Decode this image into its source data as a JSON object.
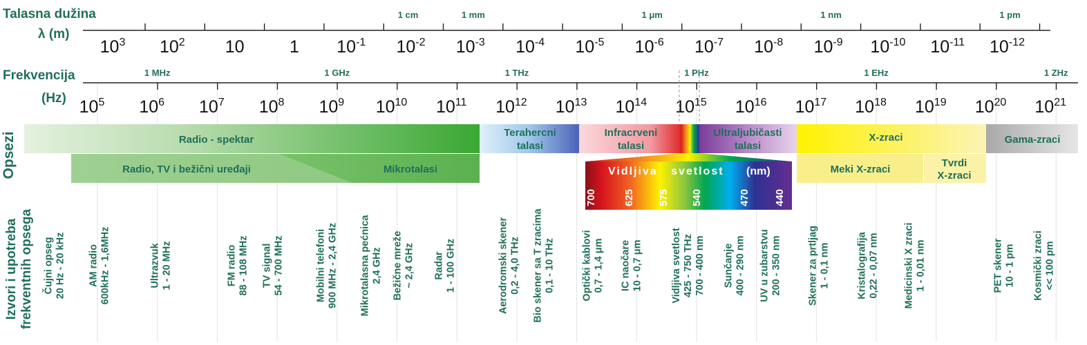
{
  "wavelength_title": "Talasna dužina",
  "wavelength_unit": "λ (m)",
  "frequency_title": "Frekvencija",
  "frequency_unit": "(Hz)",
  "wavelength_ticks": [
    {
      "base": "10",
      "exp": "3"
    },
    {
      "base": "10",
      "exp": "2"
    },
    {
      "base": "10",
      "exp": ""
    },
    {
      "base": "1",
      "exp": ""
    },
    {
      "base": "10",
      "exp": "-1"
    },
    {
      "base": "10",
      "exp": "-2"
    },
    {
      "base": "10",
      "exp": "-3"
    },
    {
      "base": "10",
      "exp": "-4"
    },
    {
      "base": "10",
      "exp": "-5"
    },
    {
      "base": "10",
      "exp": "-6"
    },
    {
      "base": "10",
      "exp": "-7"
    },
    {
      "base": "10",
      "exp": "-8"
    },
    {
      "base": "10",
      "exp": "-9"
    },
    {
      "base": "10",
      "exp": "-10"
    },
    {
      "base": "10",
      "exp": "-11"
    },
    {
      "base": "10",
      "exp": "-12"
    }
  ],
  "wavelength_markers": [
    {
      "label": "1 cm",
      "at": -2
    },
    {
      "label": "1 mm",
      "at": -3
    },
    {
      "label": "1 μm",
      "at": -6
    },
    {
      "label": "1 nm",
      "at": -9
    },
    {
      "label": "1 pm",
      "at": -12
    }
  ],
  "frequency_ticks": [
    "5",
    "6",
    "7",
    "8",
    "9",
    "10",
    "11",
    "12",
    "13",
    "14",
    "15",
    "16",
    "17",
    "18",
    "19",
    "20",
    "21"
  ],
  "frequency_markers": [
    {
      "label": "1 MHz",
      "at": 6
    },
    {
      "label": "1 GHz",
      "at": 9
    },
    {
      "label": "1 THz",
      "at": 12
    },
    {
      "label": "1 PHz",
      "at": 15
    },
    {
      "label": "1 EHz",
      "at": 18
    },
    {
      "label": "1 ZHz",
      "at": 21
    }
  ],
  "side_labels": {
    "ranges": "Opsezi",
    "sources": "Izvori i upotreba frekventnih opsega"
  },
  "bands": {
    "radio": "Radio - spektar",
    "terahertz": "Terahercni talasi",
    "infrared": "Infracrveni talasi",
    "ultraviolet": "Ultraljubičasti talasi",
    "xray": "X-zraci",
    "gamma": "Gama-zraci",
    "radio_tv": "Radio, TV i bežični uređaji",
    "microwaves": "Mikrotalasi",
    "soft_x": "Meki X-zraci",
    "hard_x": "Tvrdi X-zraci",
    "visible": "Vidljiva   svetlost",
    "visible_unit": "(nm)",
    "visible_ticks": [
      "700",
      "625",
      "575",
      "540",
      "470",
      "440"
    ]
  },
  "uses": [
    {
      "lines": [
        "Čujni opseg",
        "20 Hz - 20 kHz"
      ]
    },
    {
      "lines": [
        "AM radio",
        "600kHz - 1,6MHz"
      ]
    },
    {
      "lines": [
        "Ultrazvuk",
        "1 - 20 MHz"
      ]
    },
    {
      "lines": [
        "FM radio",
        "88 - 108 MHz"
      ]
    },
    {
      "lines": [
        "TV signal",
        "54 - 700 MHz"
      ]
    },
    {
      "lines": [
        "Mobilni telefoni",
        "900 MHz - 2,4 GHz"
      ]
    },
    {
      "lines": [
        "Mikrotalasna pećnica",
        "2,4 GHz"
      ]
    },
    {
      "lines": [
        "Bežične mreže",
        "~ 2,4 GHz"
      ]
    },
    {
      "lines": [
        "Radar",
        "1 - 100 GHz"
      ]
    },
    {
      "lines": [
        "Aerodromski skener",
        "0,2 - 4,0 THz"
      ]
    },
    {
      "lines": [
        "Bio skener sa T zracima",
        "0,1 - 10 THz"
      ]
    },
    {
      "lines": [
        "Optički kablovi",
        "0,7 - 1,4 μm"
      ]
    },
    {
      "lines": [
        "IC naočare",
        "10 - 0,7 μm"
      ]
    },
    {
      "lines": [
        "Vidljiva svetlost",
        "425 - 750 THz",
        "700 - 400 nm"
      ]
    },
    {
      "lines": [
        "Sunčanje",
        "400 - 290 nm"
      ]
    },
    {
      "lines": [
        "UV u zubarstvu",
        "200 - 350 nm"
      ]
    },
    {
      "lines": [
        "Skener za prtljag",
        "1 - 0,1 nm"
      ]
    },
    {
      "lines": [
        "Kristalografija",
        "0,22 - 0,07 nm"
      ]
    },
    {
      "lines": [
        "Medicinski X zraci",
        "1 - 0,01 nm"
      ]
    },
    {
      "lines": [
        "PET skener",
        "10 - 1 pm"
      ]
    },
    {
      "lines": [
        "Kosmički zraci",
        "<< 100 pm"
      ]
    }
  ]
}
